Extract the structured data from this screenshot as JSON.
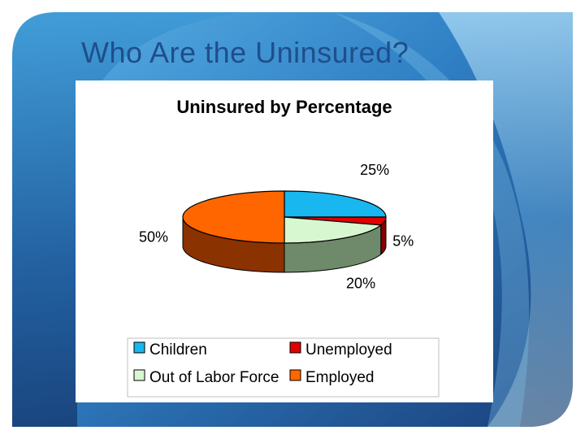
{
  "slide": {
    "title": "Who Are the Uninsured?"
  },
  "chart_data": {
    "type": "pie",
    "title": "Uninsured by Percentage",
    "categories": [
      "Children",
      "Unemployed",
      "Out of Labor Force",
      "Employed"
    ],
    "values": [
      25,
      5,
      20,
      50
    ],
    "labels": [
      "25%",
      "5%",
      "20%",
      "50%"
    ],
    "colors": [
      "#19b7f0",
      "#e00000",
      "#d7f7d0",
      "#ff6600"
    ],
    "side_colors": [
      "#0f7fa8",
      "#8a0000",
      "#6f8a6a",
      "#8a3200"
    ],
    "legend": {
      "placement": "bottom",
      "columns": 2
    },
    "three_d": true
  }
}
